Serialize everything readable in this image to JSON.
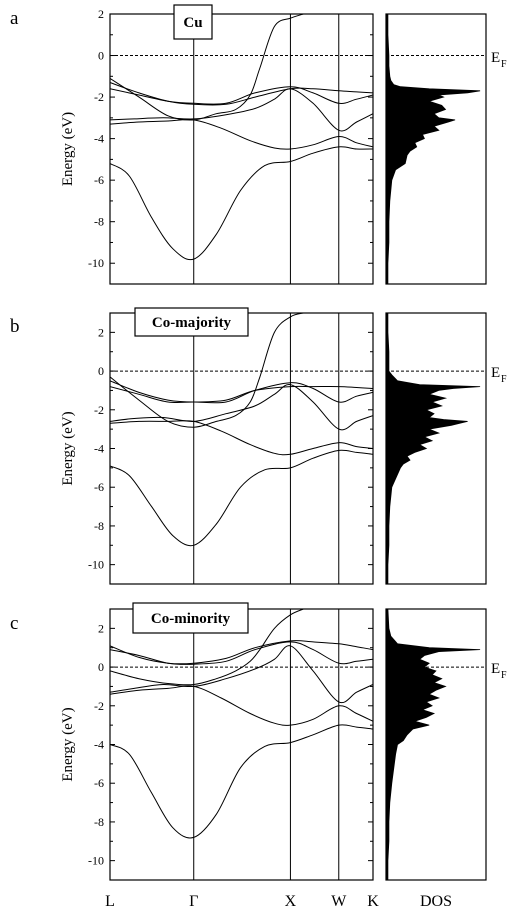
{
  "ef_label": "E",
  "ef_subscript": "F",
  "dos_label": "DOS",
  "kpoint_labels": [
    "L",
    "Γ",
    "X",
    "W",
    "K"
  ],
  "chart_data": [
    {
      "type": "line",
      "panel_letter": "a",
      "title": "Cu",
      "ylabel": "Energy (eV)",
      "ylim": [
        -11,
        2
      ],
      "yticks": [
        2,
        0,
        -2,
        -4,
        -6,
        -8,
        -10
      ],
      "fermi_level": 0,
      "kpath": [
        {
          "label": "L",
          "k": 0
        },
        {
          "label": "Γ",
          "k": 0.866
        },
        {
          "label": "X",
          "k": 1.866
        },
        {
          "label": "W",
          "k": 2.366
        },
        {
          "label": "K",
          "k": 2.72
        }
      ],
      "bands": [
        {
          "k": [
            0,
            0.2,
            0.43,
            0.65,
            0.866,
            1.1,
            1.35,
            1.6,
            1.866,
            2.1,
            2.366,
            2.55,
            2.72
          ],
          "energy": [
            -5.2,
            -5.8,
            -7.8,
            -9.3,
            -9.8,
            -8.6,
            -6.5,
            -5.3,
            -5.1,
            -4.7,
            -4.4,
            -4.5,
            -4.5
          ]
        },
        {
          "k": [
            0,
            0.3,
            0.6,
            0.866,
            1.15,
            1.45,
            1.7,
            1.866,
            2.1,
            2.366,
            2.55,
            2.72
          ],
          "energy": [
            -3.3,
            -3.2,
            -3.15,
            -3.1,
            -3.5,
            -4.1,
            -4.45,
            -4.5,
            -4.3,
            -3.9,
            -4.2,
            -4.4
          ]
        },
        {
          "k": [
            0,
            0.25,
            0.55,
            0.866,
            1.2,
            1.5,
            1.7,
            1.866,
            2.1,
            2.366,
            2.55,
            2.72
          ],
          "energy": [
            -3.1,
            -3.05,
            -3.0,
            -3.05,
            -2.85,
            -2.55,
            -2.1,
            -1.6,
            -2.3,
            -3.6,
            -3.2,
            -2.8
          ]
        },
        {
          "k": [
            0,
            0.3,
            0.6,
            0.866,
            1.2,
            1.5,
            1.866,
            2.1,
            2.366,
            2.55,
            2.72
          ],
          "energy": [
            -1.6,
            -1.9,
            -2.2,
            -2.3,
            -2.3,
            -1.8,
            -1.5,
            -1.8,
            -2.3,
            -2.1,
            -1.9
          ]
        },
        {
          "k": [
            0,
            0.3,
            0.6,
            0.866,
            1.2,
            1.5,
            1.866,
            2.1,
            2.366,
            2.55,
            2.72
          ],
          "energy": [
            -1.3,
            -1.8,
            -2.2,
            -2.35,
            -2.35,
            -2.0,
            -1.6,
            -1.6,
            -1.7,
            -1.75,
            -1.8
          ]
        },
        {
          "k": [
            0,
            0.3,
            0.6,
            0.866,
            1.1,
            1.3,
            1.45,
            1.55,
            1.7,
            1.866,
            2.0
          ],
          "energy": [
            -1.1,
            -2.0,
            -2.9,
            -3.1,
            -2.8,
            -2.6,
            -1.9,
            -0.6,
            1.4,
            1.8,
            2.0
          ]
        }
      ],
      "dos": {
        "energy": [
          -11,
          -10,
          -9,
          -8,
          -7,
          -6,
          -5.5,
          -5.2,
          -4.8,
          -4.6,
          -4.4,
          -4.2,
          -4.0,
          -3.8,
          -3.6,
          -3.4,
          -3.2,
          -3.1,
          -3.0,
          -2.8,
          -2.6,
          -2.4,
          -2.2,
          -2.0,
          -1.9,
          -1.8,
          -1.7,
          -1.6,
          -1.5,
          -1.4,
          -1.2,
          -1.0,
          -0.5,
          0,
          1,
          2
        ],
        "value": [
          0.02,
          0.02,
          0.03,
          0.03,
          0.04,
          0.06,
          0.1,
          0.2,
          0.22,
          0.25,
          0.32,
          0.3,
          0.4,
          0.38,
          0.55,
          0.5,
          0.65,
          0.72,
          0.55,
          0.5,
          0.62,
          0.58,
          0.45,
          0.6,
          0.55,
          0.85,
          0.98,
          0.45,
          0.15,
          0.08,
          0.05,
          0.04,
          0.03,
          0.03,
          0.02,
          0.02
        ]
      }
    },
    {
      "type": "line",
      "panel_letter": "b",
      "title": "Co-majority",
      "ylabel": "Energy (eV)",
      "ylim": [
        -11,
        3
      ],
      "yticks": [
        2,
        0,
        -2,
        -4,
        -6,
        -8,
        -10
      ],
      "fermi_level": 0,
      "kpath": [
        {
          "label": "L",
          "k": 0
        },
        {
          "label": "Γ",
          "k": 0.866
        },
        {
          "label": "X",
          "k": 1.866
        },
        {
          "label": "W",
          "k": 2.366
        },
        {
          "label": "K",
          "k": 2.72
        }
      ],
      "bands": [
        {
          "k": [
            0,
            0.2,
            0.43,
            0.65,
            0.866,
            1.1,
            1.35,
            1.6,
            1.866,
            2.1,
            2.366,
            2.55,
            2.72
          ],
          "energy": [
            -4.9,
            -5.4,
            -7.0,
            -8.5,
            -9.0,
            -7.9,
            -6.0,
            -5.1,
            -5.0,
            -4.5,
            -4.1,
            -4.2,
            -4.3
          ]
        },
        {
          "k": [
            0,
            0.3,
            0.6,
            0.866,
            1.15,
            1.45,
            1.7,
            1.866,
            2.1,
            2.366,
            2.55,
            2.72
          ],
          "energy": [
            -2.7,
            -2.6,
            -2.6,
            -2.6,
            -3.1,
            -3.8,
            -4.25,
            -4.3,
            -4.0,
            -3.7,
            -3.9,
            -4.0
          ]
        },
        {
          "k": [
            0,
            0.25,
            0.55,
            0.866,
            1.2,
            1.5,
            1.7,
            1.866,
            2.1,
            2.366,
            2.55,
            2.72
          ],
          "energy": [
            -2.6,
            -2.45,
            -2.4,
            -2.6,
            -2.2,
            -1.8,
            -1.2,
            -0.7,
            -1.6,
            -3.0,
            -2.6,
            -2.3
          ]
        },
        {
          "k": [
            0,
            0.3,
            0.6,
            0.866,
            1.2,
            1.5,
            1.866,
            2.1,
            2.366,
            2.55,
            2.72
          ],
          "energy": [
            -0.8,
            -1.2,
            -1.6,
            -1.6,
            -1.6,
            -1.0,
            -0.6,
            -0.9,
            -1.6,
            -1.3,
            -1.1
          ]
        },
        {
          "k": [
            0,
            0.3,
            0.6,
            0.866,
            1.2,
            1.5,
            1.866,
            2.1,
            2.366,
            2.55,
            2.72
          ],
          "energy": [
            -0.5,
            -1.1,
            -1.5,
            -1.6,
            -1.5,
            -1.0,
            -0.8,
            -0.8,
            -0.8,
            -0.85,
            -0.9
          ]
        },
        {
          "k": [
            0,
            0.3,
            0.6,
            0.866,
            1.1,
            1.3,
            1.45,
            1.55,
            1.7,
            1.866,
            2.0
          ],
          "energy": [
            -0.3,
            -1.5,
            -2.6,
            -2.9,
            -2.6,
            -2.3,
            -1.6,
            -0.3,
            2.0,
            2.8,
            3.0
          ]
        }
      ],
      "dos": {
        "energy": [
          -11,
          -10,
          -9,
          -8,
          -7,
          -6,
          -5.0,
          -4.8,
          -4.6,
          -4.4,
          -4.2,
          -4.0,
          -3.8,
          -3.6,
          -3.4,
          -3.2,
          -3.0,
          -2.8,
          -2.6,
          -2.5,
          -2.4,
          -2.2,
          -2.0,
          -1.8,
          -1.6,
          -1.4,
          -1.2,
          -1.0,
          -0.9,
          -0.8,
          -0.7,
          -0.5,
          -0.2,
          0,
          1,
          2,
          3
        ],
        "value": [
          0.02,
          0.02,
          0.03,
          0.03,
          0.04,
          0.06,
          0.15,
          0.18,
          0.25,
          0.22,
          0.3,
          0.42,
          0.35,
          0.48,
          0.4,
          0.55,
          0.45,
          0.68,
          0.85,
          0.6,
          0.45,
          0.5,
          0.42,
          0.58,
          0.48,
          0.62,
          0.45,
          0.55,
          0.7,
          0.98,
          0.35,
          0.12,
          0.06,
          0.03,
          0.03,
          0.02,
          0.02
        ]
      }
    },
    {
      "type": "line",
      "panel_letter": "c",
      "title": "Co-minority",
      "ylabel": "Energy (eV)",
      "ylim": [
        -11,
        3
      ],
      "yticks": [
        2,
        0,
        -2,
        -4,
        -6,
        -8,
        -10
      ],
      "fermi_level": 0,
      "kpath": [
        {
          "label": "L",
          "k": 0
        },
        {
          "label": "Γ",
          "k": 0.866
        },
        {
          "label": "X",
          "k": 1.866
        },
        {
          "label": "W",
          "k": 2.366
        },
        {
          "label": "K",
          "k": 2.72
        }
      ],
      "bands": [
        {
          "k": [
            0,
            0.2,
            0.43,
            0.65,
            0.866,
            1.1,
            1.35,
            1.6,
            1.866,
            2.1,
            2.366,
            2.55,
            2.72
          ],
          "energy": [
            -4.0,
            -4.5,
            -6.5,
            -8.3,
            -8.8,
            -7.6,
            -5.2,
            -4.1,
            -3.9,
            -3.5,
            -3.0,
            -3.1,
            -3.2
          ]
        },
        {
          "k": [
            0,
            0.3,
            0.6,
            0.866,
            1.15,
            1.45,
            1.7,
            1.866,
            2.1,
            2.366,
            2.55,
            2.72
          ],
          "energy": [
            -1.4,
            -1.2,
            -1.1,
            -1.0,
            -1.6,
            -2.4,
            -2.9,
            -3.0,
            -2.7,
            -2.0,
            -2.4,
            -2.8
          ]
        },
        {
          "k": [
            0,
            0.25,
            0.55,
            0.866,
            1.2,
            1.5,
            1.7,
            1.866,
            2.1,
            2.366,
            2.55,
            2.72
          ],
          "energy": [
            -1.3,
            -1.1,
            -0.9,
            -1.0,
            -0.6,
            -0.1,
            0.4,
            1.1,
            -0.2,
            -1.8,
            -1.3,
            -0.9
          ]
        },
        {
          "k": [
            0,
            0.3,
            0.6,
            0.866,
            1.2,
            1.5,
            1.866,
            2.1,
            2.366,
            2.55,
            2.72
          ],
          "energy": [
            0.9,
            0.6,
            0.2,
            0.15,
            0.3,
            0.9,
            1.3,
            0.9,
            0.2,
            0.3,
            0.4
          ]
        },
        {
          "k": [
            0,
            0.3,
            0.6,
            0.866,
            1.2,
            1.5,
            1.866,
            2.1,
            2.366,
            2.55,
            2.72
          ],
          "energy": [
            1.1,
            0.5,
            0.2,
            0.2,
            0.45,
            1.0,
            1.35,
            1.3,
            1.2,
            1.05,
            0.9
          ]
        },
        {
          "k": [
            0,
            0.3,
            0.6,
            0.866,
            1.1,
            1.3,
            1.45,
            1.55,
            1.7,
            1.866,
            2.0
          ],
          "energy": [
            -0.2,
            -0.6,
            -0.85,
            -0.9,
            -0.6,
            -0.2,
            0.3,
            0.9,
            2.0,
            2.7,
            3.0
          ]
        }
      ],
      "dos": {
        "energy": [
          -11,
          -10,
          -9,
          -8,
          -7,
          -6,
          -4.5,
          -4.0,
          -3.8,
          -3.5,
          -3.2,
          -3.0,
          -2.8,
          -2.6,
          -2.4,
          -2.2,
          -2.0,
          -1.8,
          -1.6,
          -1.4,
          -1.2,
          -1.0,
          -0.8,
          -0.6,
          -0.4,
          -0.2,
          0,
          0.2,
          0.4,
          0.6,
          0.8,
          0.9,
          1.0,
          1.2,
          1.6,
          2.0,
          3.0
        ],
        "value": [
          0.02,
          0.02,
          0.03,
          0.03,
          0.04,
          0.06,
          0.1,
          0.12,
          0.18,
          0.22,
          0.28,
          0.45,
          0.3,
          0.42,
          0.5,
          0.38,
          0.48,
          0.42,
          0.55,
          0.45,
          0.52,
          0.62,
          0.5,
          0.58,
          0.48,
          0.52,
          0.4,
          0.45,
          0.35,
          0.4,
          0.55,
          0.98,
          0.45,
          0.12,
          0.05,
          0.03,
          0.02
        ]
      }
    }
  ]
}
